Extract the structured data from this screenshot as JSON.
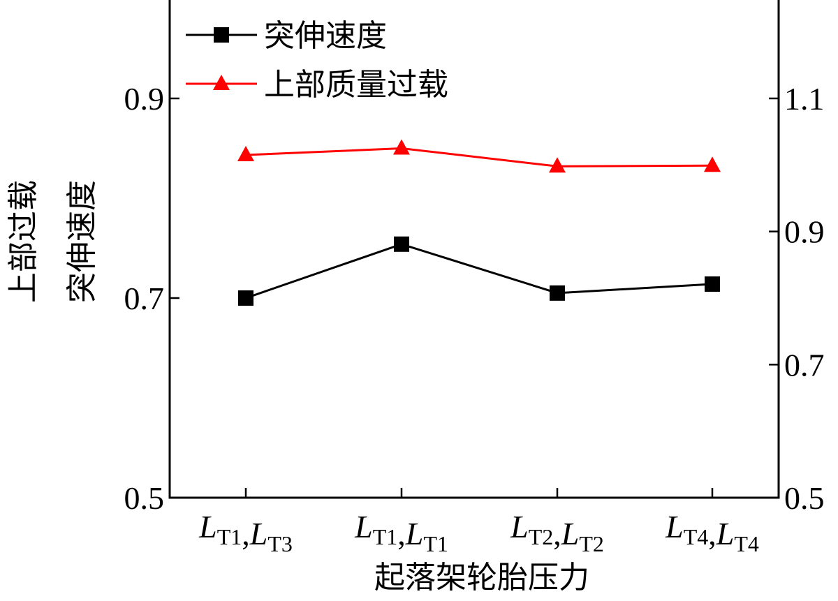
{
  "chart_data": {
    "type": "line",
    "xlabel": "起落架轮胎压力",
    "ylabel_left": [
      "上部过载",
      "突伸速度"
    ],
    "categories": [
      {
        "parts": [
          {
            "t": "L",
            "s": "T1"
          },
          {
            "t": ",",
            "s": ""
          },
          {
            "t": "L",
            "s": "T3"
          }
        ]
      },
      {
        "parts": [
          {
            "t": "L",
            "s": "T1"
          },
          {
            "t": ",",
            "s": ""
          },
          {
            "t": "L",
            "s": "T1"
          }
        ]
      },
      {
        "parts": [
          {
            "t": "L",
            "s": "T2"
          },
          {
            "t": ",",
            "s": ""
          },
          {
            "t": "L",
            "s": "T2"
          }
        ]
      },
      {
        "parts": [
          {
            "t": "L",
            "s": "T4"
          },
          {
            "t": ",",
            "s": ""
          },
          {
            "t": "L",
            "s": "T4"
          }
        ]
      }
    ],
    "y_left": {
      "range": [
        0.5,
        0.9
      ],
      "ticks": [
        "0.5",
        "0.7",
        "0.9"
      ]
    },
    "y_right": {
      "range": [
        0.5,
        1.1
      ],
      "ticks": [
        "0.5",
        "0.7",
        "0.9",
        "1.1"
      ]
    },
    "series": [
      {
        "name": "突伸速度",
        "axis": "left",
        "color": "#000000",
        "marker": "square",
        "values": [
          0.7,
          0.754,
          0.705,
          0.714
        ]
      },
      {
        "name": "上部质量过载",
        "axis": "right",
        "color": "#ff0000",
        "marker": "triangle",
        "values": [
          1.015,
          1.025,
          0.998,
          0.999
        ]
      }
    ],
    "legend_position": "top-left",
    "grid": false
  }
}
